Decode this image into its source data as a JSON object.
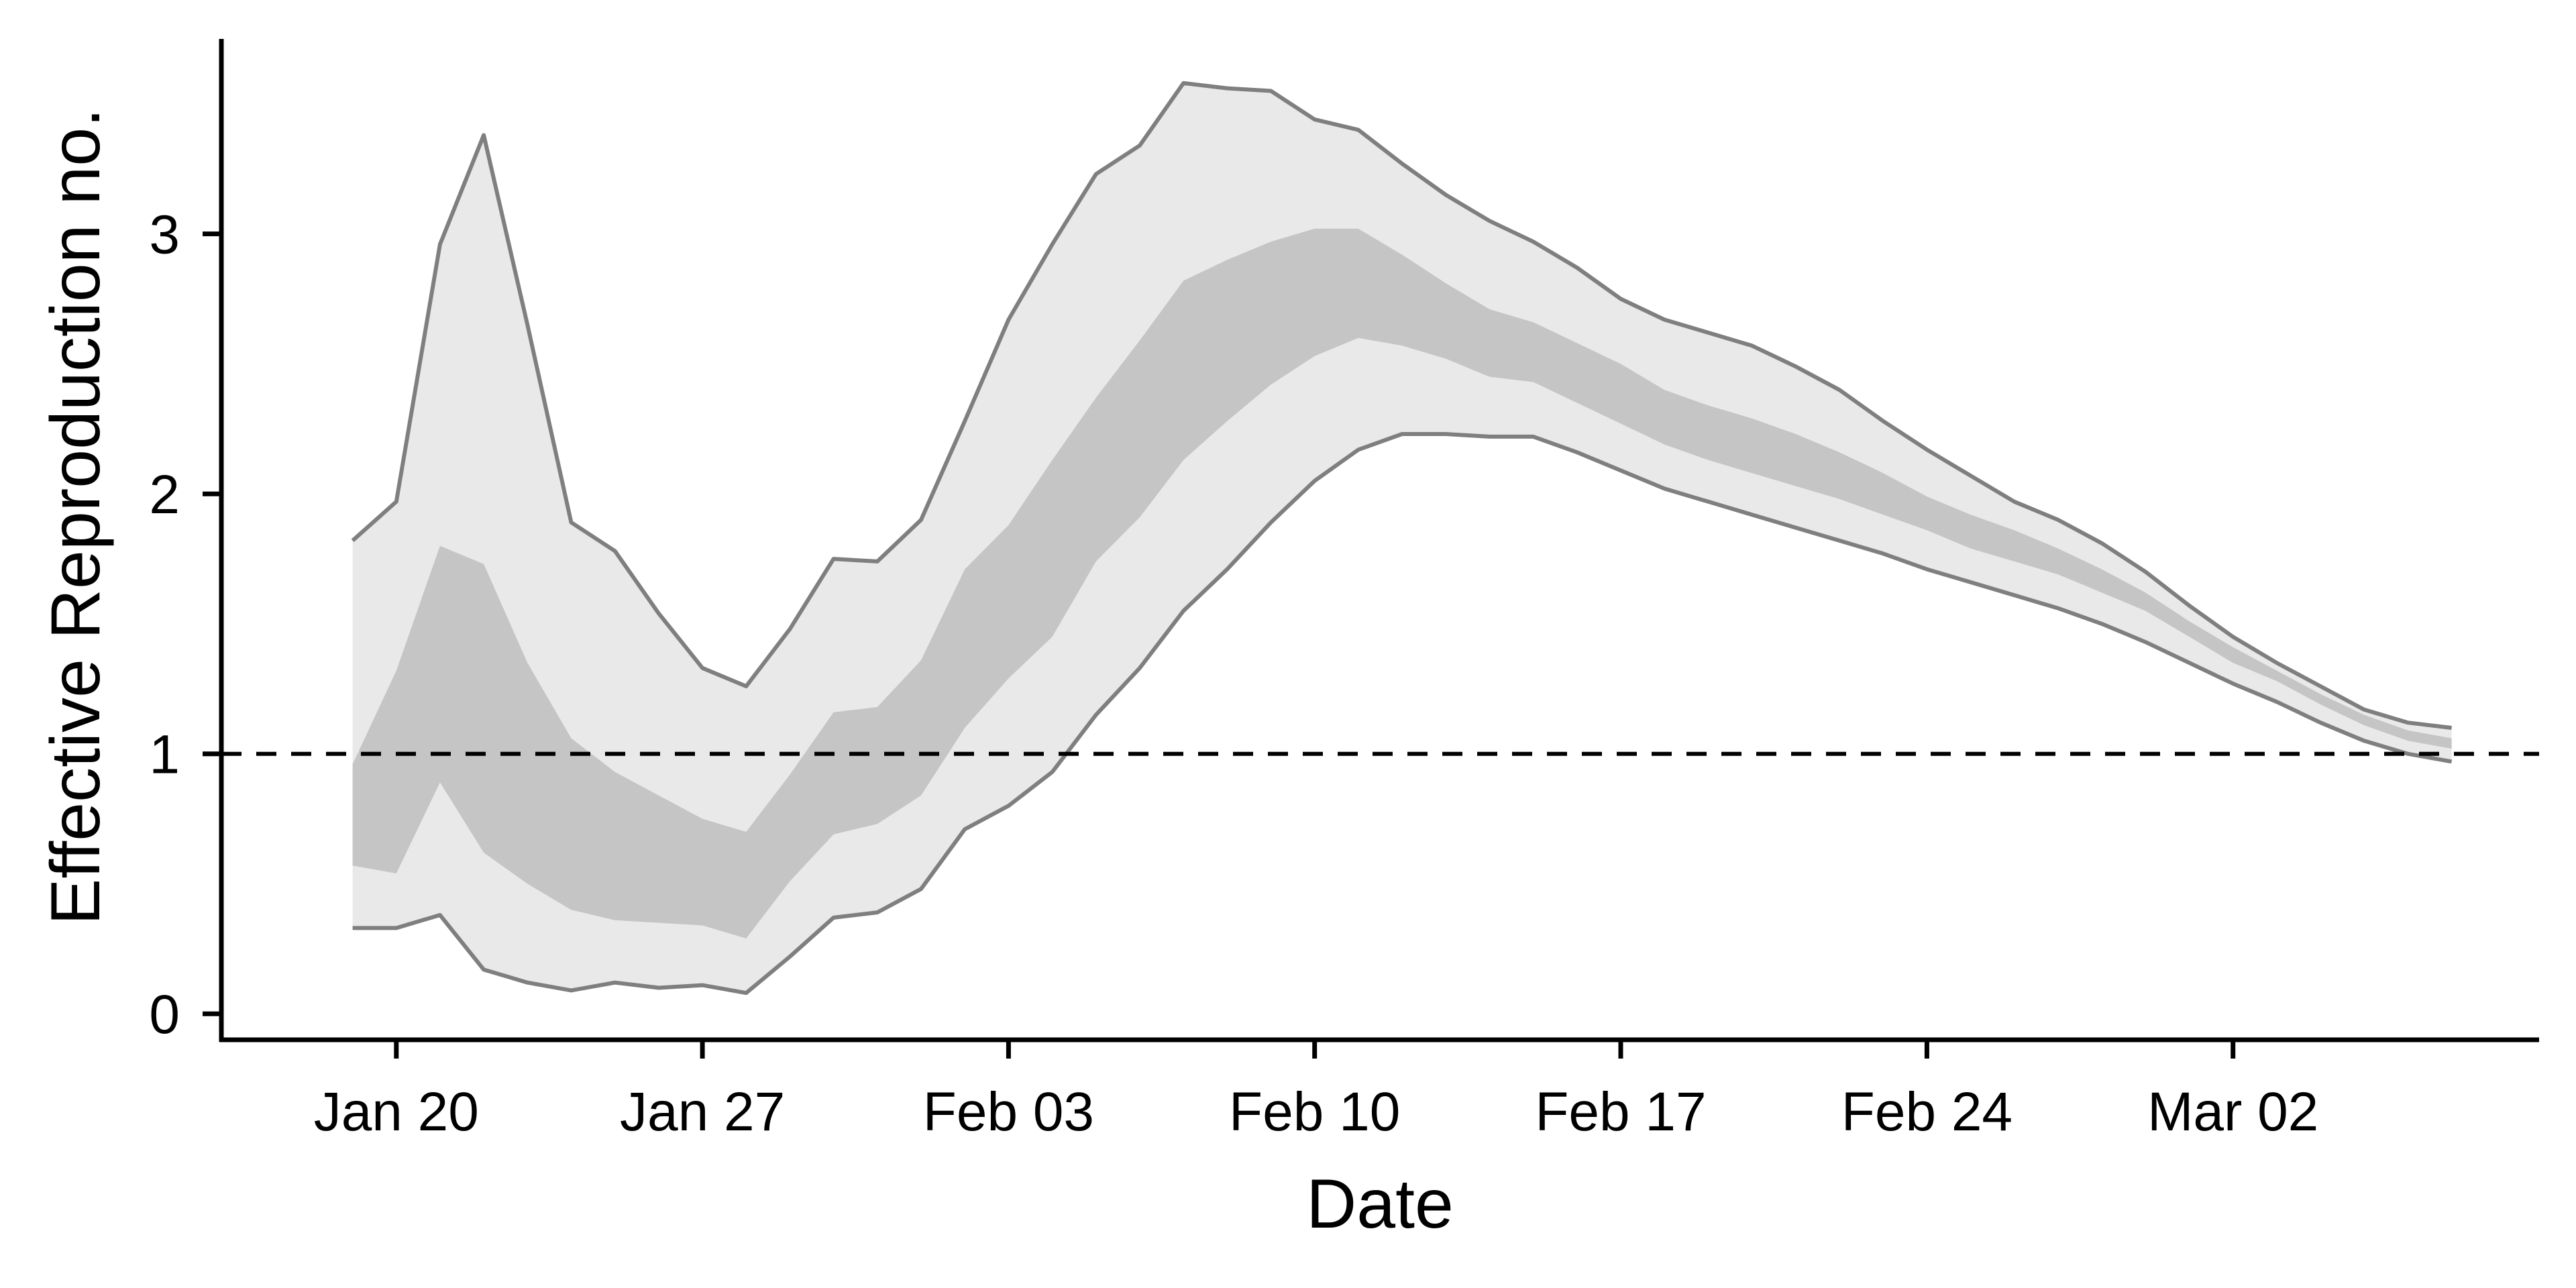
{
  "chart_data": {
    "type": "area",
    "title": "",
    "xlabel": "Date",
    "ylabel": "Effective Reproduction no.",
    "x_ticks": [
      "Jan 20",
      "Jan 27",
      "Feb 03",
      "Feb 10",
      "Feb 17",
      "Feb 24",
      "Mar 02"
    ],
    "y_ticks": [
      "0",
      "1",
      "2",
      "3"
    ],
    "ylim": [
      -0.1,
      3.75
    ],
    "xlim": [
      "2020-01-16",
      "2020-03-09"
    ],
    "reference_line": {
      "y": 1,
      "style": "dashed"
    },
    "colors": {
      "outer_band": "#e9e9e9",
      "inner_band": "#c5c5c5",
      "bound_line": "#7f7f7f",
      "reference_line": "#000000"
    },
    "x": [
      "2020-01-19",
      "2020-01-20",
      "2020-01-21",
      "2020-01-22",
      "2020-01-23",
      "2020-01-24",
      "2020-01-25",
      "2020-01-26",
      "2020-01-27",
      "2020-01-28",
      "2020-01-29",
      "2020-01-30",
      "2020-01-31",
      "2020-02-01",
      "2020-02-02",
      "2020-02-03",
      "2020-02-04",
      "2020-02-05",
      "2020-02-06",
      "2020-02-07",
      "2020-02-08",
      "2020-02-09",
      "2020-02-10",
      "2020-02-11",
      "2020-02-12",
      "2020-02-13",
      "2020-02-14",
      "2020-02-15",
      "2020-02-16",
      "2020-02-17",
      "2020-02-18",
      "2020-02-19",
      "2020-02-20",
      "2020-02-21",
      "2020-02-22",
      "2020-02-23",
      "2020-02-24",
      "2020-02-25",
      "2020-02-26",
      "2020-02-27",
      "2020-02-28",
      "2020-02-29",
      "2020-03-01",
      "2020-03-02",
      "2020-03-03",
      "2020-03-04",
      "2020-03-05",
      "2020-03-06",
      "2020-03-07"
    ],
    "series": [
      {
        "band": "outer",
        "upper": [
          1.82,
          1.97,
          2.96,
          3.38,
          2.65,
          1.89,
          1.78,
          1.54,
          1.33,
          1.26,
          1.48,
          1.75,
          1.74,
          1.9,
          2.28,
          2.67,
          2.96,
          3.23,
          3.34,
          3.58,
          3.56,
          3.55,
          3.44,
          3.4,
          3.27,
          3.15,
          3.05,
          2.97,
          2.87,
          2.75,
          2.67,
          2.62,
          2.57,
          2.49,
          2.4,
          2.28,
          2.17,
          2.07,
          1.97,
          1.9,
          1.81,
          1.7,
          1.57,
          1.45,
          1.35,
          1.26,
          1.17,
          1.12,
          1.1
        ],
        "lower": [
          0.33,
          0.33,
          0.38,
          0.17,
          0.12,
          0.09,
          0.12,
          0.1,
          0.11,
          0.08,
          0.22,
          0.37,
          0.39,
          0.48,
          0.71,
          0.8,
          0.93,
          1.15,
          1.33,
          1.55,
          1.71,
          1.89,
          2.05,
          2.17,
          2.23,
          2.23,
          2.22,
          2.22,
          2.16,
          2.09,
          2.02,
          1.97,
          1.92,
          1.87,
          1.82,
          1.77,
          1.71,
          1.66,
          1.61,
          1.56,
          1.5,
          1.43,
          1.35,
          1.27,
          1.2,
          1.12,
          1.05,
          1.0,
          0.97
        ]
      },
      {
        "band": "inner",
        "upper": [
          0.96,
          1.32,
          1.8,
          1.73,
          1.35,
          1.06,
          0.93,
          0.84,
          0.75,
          0.7,
          0.92,
          1.16,
          1.18,
          1.36,
          1.71,
          1.88,
          2.13,
          2.37,
          2.59,
          2.82,
          2.9,
          2.97,
          3.02,
          3.02,
          2.92,
          2.81,
          2.71,
          2.66,
          2.58,
          2.5,
          2.4,
          2.34,
          2.29,
          2.23,
          2.16,
          2.08,
          1.99,
          1.92,
          1.86,
          1.79,
          1.71,
          1.62,
          1.51,
          1.41,
          1.32,
          1.23,
          1.15,
          1.09,
          1.06
        ],
        "lower": [
          0.57,
          0.54,
          0.89,
          0.62,
          0.5,
          0.4,
          0.36,
          0.35,
          0.34,
          0.29,
          0.51,
          0.69,
          0.73,
          0.84,
          1.1,
          1.29,
          1.45,
          1.74,
          1.91,
          2.13,
          2.28,
          2.42,
          2.53,
          2.6,
          2.57,
          2.52,
          2.45,
          2.43,
          2.35,
          2.27,
          2.19,
          2.13,
          2.08,
          2.03,
          1.98,
          1.92,
          1.86,
          1.79,
          1.74,
          1.69,
          1.62,
          1.55,
          1.45,
          1.35,
          1.28,
          1.19,
          1.11,
          1.05,
          1.02
        ]
      }
    ]
  }
}
